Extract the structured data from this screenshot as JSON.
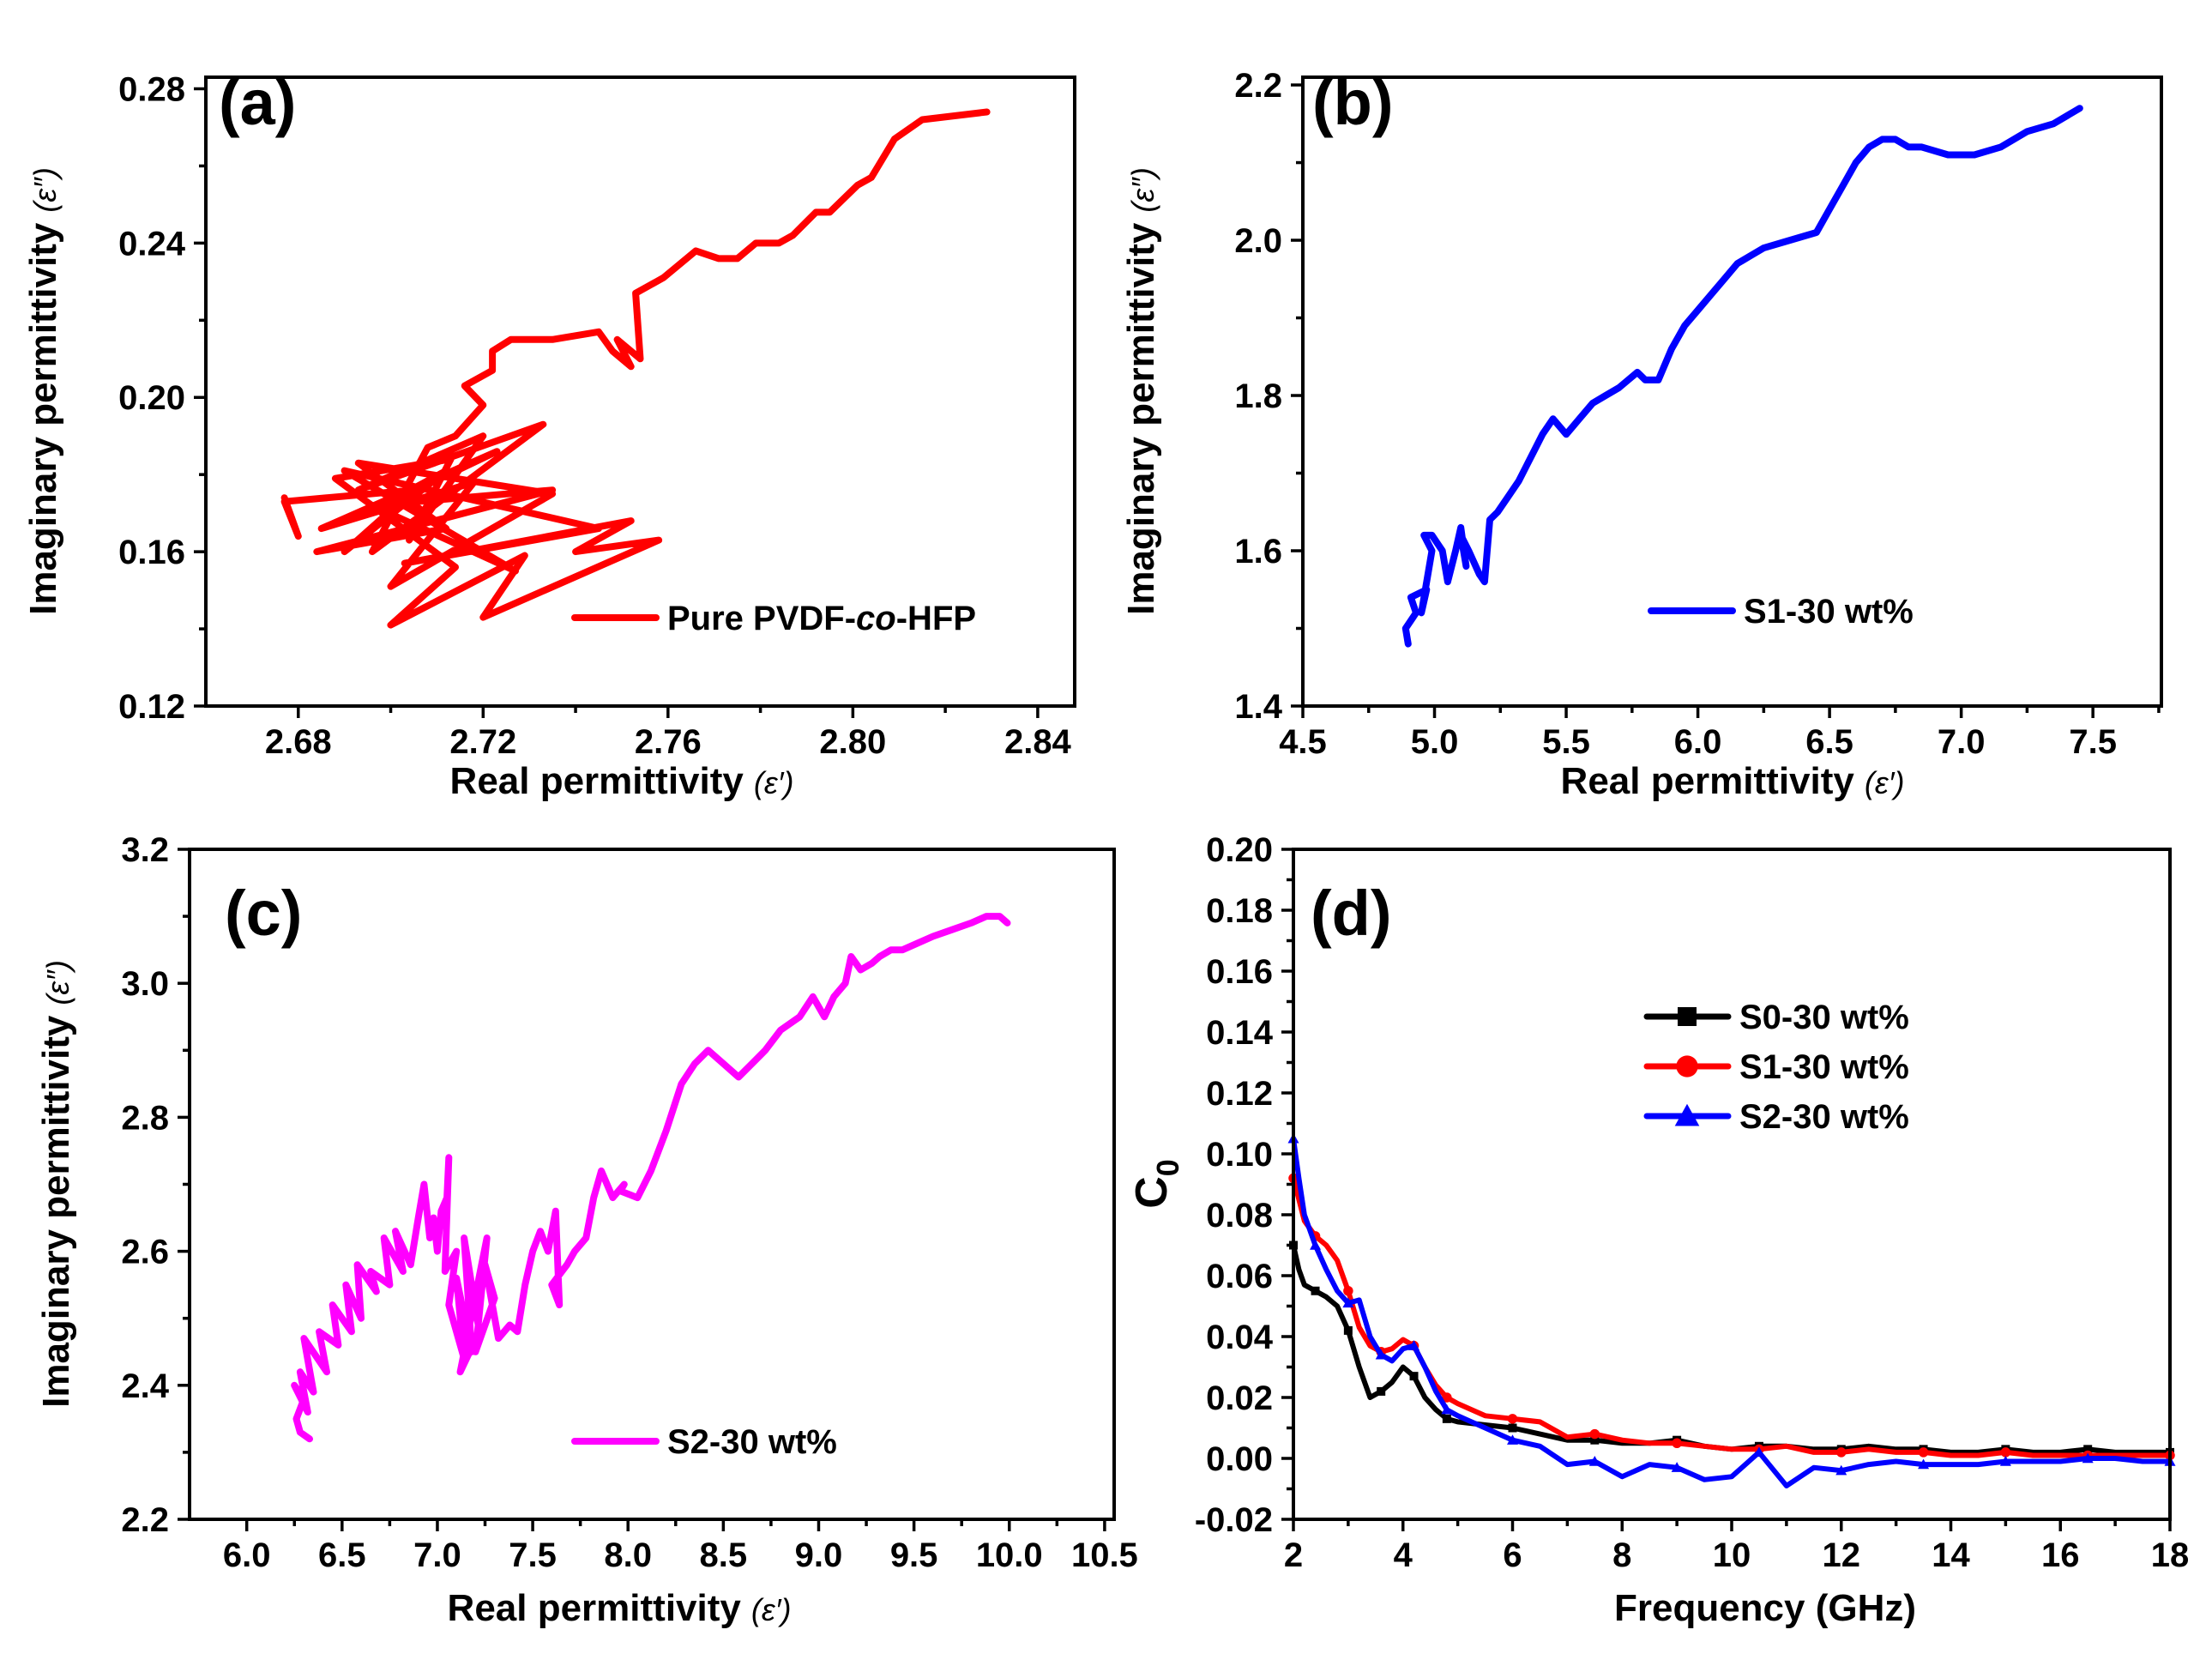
{
  "figure": {
    "panels": [
      "(a)",
      "(b)",
      "(c)",
      "(d)"
    ]
  },
  "chart_data": [
    {
      "id": "a",
      "type": "line",
      "panel_label": "(a)",
      "xlabel": "Real permittivity",
      "xsymbol": "(ε′)",
      "ylabel": "Imaginary permittivity",
      "ysymbol": "(ε″)",
      "xlim": [
        2.66,
        2.848
      ],
      "ylim": [
        0.12,
        0.283
      ],
      "x_ticks": [
        2.68,
        2.72,
        2.76,
        2.8,
        2.84
      ],
      "x_tick_labels": [
        "2.68",
        "2.72",
        "2.76",
        "2.80",
        "2.84"
      ],
      "y_ticks": [
        0.12,
        0.16,
        0.2,
        0.24,
        0.28
      ],
      "y_tick_labels": [
        "0.12",
        "0.16",
        "0.20",
        "0.24",
        "0.28"
      ],
      "legend_position": "bottom-right",
      "series": [
        {
          "name": "Pure PVDF-co-HFP",
          "name_prefix": "Pure PVDF-",
          "name_italic": "co",
          "name_suffix": "-HFP",
          "color": "#ff0000",
          "marker": "none",
          "x": [
            2.677,
            2.68,
            2.677,
            2.705,
            2.69,
            2.712,
            2.695,
            2.723,
            2.685,
            2.718,
            2.7,
            2.735,
            2.693,
            2.712,
            2.684,
            2.735,
            2.696,
            2.727,
            2.69,
            2.745,
            2.703,
            2.752,
            2.74,
            2.758,
            2.72,
            2.729,
            2.7,
            2.714,
            2.688,
            2.713,
            2.704,
            2.72,
            2.693,
            2.733,
            2.696,
            2.708,
            2.714,
            2.72,
            2.716,
            2.722,
            2.722,
            2.726,
            2.735,
            2.745,
            2.748,
            2.752,
            2.749,
            2.754,
            2.753,
            2.759,
            2.766,
            2.771,
            2.775,
            2.779,
            2.784,
            2.787,
            2.792,
            2.795,
            2.801,
            2.804,
            2.809,
            2.815,
            2.829
          ],
          "y": [
            0.174,
            0.164,
            0.173,
            0.176,
            0.16,
            0.181,
            0.17,
            0.186,
            0.166,
            0.178,
            0.151,
            0.175,
            0.183,
            0.166,
            0.16,
            0.176,
            0.172,
            0.155,
            0.181,
            0.166,
            0.157,
            0.168,
            0.16,
            0.163,
            0.143,
            0.159,
            0.141,
            0.156,
            0.179,
            0.184,
            0.163,
            0.19,
            0.176,
            0.193,
            0.16,
            0.187,
            0.19,
            0.198,
            0.203,
            0.207,
            0.212,
            0.215,
            0.215,
            0.217,
            0.212,
            0.208,
            0.215,
            0.21,
            0.227,
            0.231,
            0.238,
            0.236,
            0.236,
            0.24,
            0.24,
            0.242,
            0.248,
            0.248,
            0.255,
            0.257,
            0.267,
            0.272,
            0.274
          ]
        }
      ]
    },
    {
      "id": "b",
      "type": "line",
      "panel_label": "(b)",
      "xlabel": "Real permittivity",
      "xsymbol": "(ε′)",
      "ylabel": "Imaginary permittivity",
      "ysymbol": "(ε″)",
      "xlim": [
        4.5,
        7.76
      ],
      "ylim": [
        1.4,
        2.21
      ],
      "x_ticks": [
        4.5,
        5.0,
        5.5,
        6.0,
        6.5,
        7.0,
        7.5
      ],
      "x_tick_labels": [
        "4.5",
        "5.0",
        "5.5",
        "6.0",
        "6.5",
        "7.0",
        "7.5"
      ],
      "y_ticks": [
        1.4,
        1.6,
        1.8,
        2.0,
        2.2
      ],
      "y_tick_labels": [
        "1.4",
        "1.6",
        "1.8",
        "2.0",
        "2.2"
      ],
      "legend_position": "bottom-right",
      "series": [
        {
          "name": "S1-30 wt%",
          "color": "#0000ff",
          "marker": "none",
          "x": [
            4.9,
            4.89,
            4.93,
            4.91,
            4.97,
            4.95,
            4.99,
            4.96,
            4.99,
            5.03,
            5.05,
            5.08,
            5.1,
            5.12,
            5.1,
            5.13,
            5.17,
            5.19,
            5.21,
            5.24,
            5.28,
            5.32,
            5.35,
            5.38,
            5.41,
            5.45,
            5.5,
            5.55,
            5.6,
            5.65,
            5.7,
            5.77,
            5.8,
            5.85,
            5.9,
            5.95,
            6.0,
            6.05,
            6.1,
            6.15,
            6.2,
            6.25,
            6.35,
            6.45,
            6.5,
            6.55,
            6.6,
            6.65,
            6.7,
            6.75,
            6.8,
            6.85,
            6.95,
            7.05,
            7.15,
            7.25,
            7.35,
            7.45
          ],
          "y": [
            1.48,
            1.5,
            1.52,
            1.54,
            1.55,
            1.52,
            1.6,
            1.62,
            1.62,
            1.6,
            1.56,
            1.6,
            1.63,
            1.58,
            1.62,
            1.6,
            1.57,
            1.56,
            1.64,
            1.65,
            1.67,
            1.69,
            1.71,
            1.73,
            1.75,
            1.77,
            1.75,
            1.77,
            1.79,
            1.8,
            1.81,
            1.83,
            1.82,
            1.82,
            1.86,
            1.89,
            1.91,
            1.93,
            1.95,
            1.97,
            1.98,
            1.99,
            2.0,
            2.01,
            2.04,
            2.07,
            2.1,
            2.12,
            2.13,
            2.13,
            2.12,
            2.12,
            2.11,
            2.11,
            2.12,
            2.14,
            2.15,
            2.17
          ]
        }
      ]
    },
    {
      "id": "c",
      "type": "line",
      "panel_label": "(c)",
      "xlabel": "Real permittivity",
      "xsymbol": "(ε′)",
      "ylabel": "Imaginary permittivity",
      "ysymbol": "(ε″)",
      "xlim": [
        5.7,
        10.55
      ],
      "ylim": [
        2.2,
        3.2
      ],
      "x_ticks": [
        6.0,
        6.5,
        7.0,
        7.5,
        8.0,
        8.5,
        9.0,
        9.5,
        10.0,
        10.5
      ],
      "x_tick_labels": [
        "6.0",
        "6.5",
        "7.0",
        "7.5",
        "8.0",
        "8.5",
        "9.0",
        "9.5",
        "10.0",
        "10.5"
      ],
      "y_ticks": [
        2.2,
        2.4,
        2.6,
        2.8,
        3.0,
        3.2
      ],
      "y_tick_labels": [
        "2.2",
        "2.4",
        "2.6",
        "2.8",
        "3.0",
        "3.2"
      ],
      "legend_position": "bottom-right",
      "series": [
        {
          "name": "S2-30 wt%",
          "color": "#ff00ff",
          "marker": "none",
          "x": [
            6.33,
            6.28,
            6.26,
            6.3,
            6.25,
            6.32,
            6.28,
            6.35,
            6.3,
            6.42,
            6.38,
            6.48,
            6.45,
            6.55,
            6.52,
            6.6,
            6.58,
            6.68,
            6.65,
            6.75,
            6.72,
            6.82,
            6.78,
            6.86,
            6.9,
            6.93,
            6.96,
            6.98,
            7.0,
            7.02,
            7.05,
            7.06,
            7.04,
            7.1,
            7.06,
            7.14,
            7.1,
            7.18,
            7.14,
            7.22,
            7.12,
            7.26,
            7.2,
            7.3,
            7.25,
            7.32,
            7.38,
            7.42,
            7.46,
            7.5,
            7.54,
            7.58,
            7.62,
            7.64,
            7.6,
            7.68,
            7.72,
            7.78,
            7.82,
            7.86,
            7.92,
            7.98,
            7.96,
            8.05,
            8.12,
            8.2,
            8.28,
            8.35,
            8.42,
            8.5,
            8.58,
            8.65,
            8.72,
            8.8,
            8.9,
            8.97,
            9.03,
            9.08,
            9.14,
            9.17,
            9.22,
            9.28,
            9.32,
            9.38,
            9.44,
            9.52,
            9.6,
            9.7,
            9.8,
            9.88,
            9.95,
            9.99
          ],
          "y": [
            2.32,
            2.33,
            2.35,
            2.38,
            2.4,
            2.36,
            2.42,
            2.39,
            2.47,
            2.42,
            2.48,
            2.46,
            2.52,
            2.48,
            2.55,
            2.5,
            2.58,
            2.54,
            2.57,
            2.55,
            2.62,
            2.57,
            2.63,
            2.58,
            2.65,
            2.7,
            2.62,
            2.65,
            2.6,
            2.66,
            2.68,
            2.74,
            2.57,
            2.6,
            2.52,
            2.44,
            2.56,
            2.45,
            2.62,
            2.48,
            2.42,
            2.62,
            2.45,
            2.53,
            2.58,
            2.47,
            2.49,
            2.48,
            2.55,
            2.6,
            2.63,
            2.6,
            2.66,
            2.52,
            2.55,
            2.58,
            2.6,
            2.62,
            2.68,
            2.72,
            2.68,
            2.7,
            2.69,
            2.68,
            2.72,
            2.78,
            2.85,
            2.88,
            2.9,
            2.88,
            2.86,
            2.88,
            2.9,
            2.93,
            2.95,
            2.98,
            2.95,
            2.98,
            3.0,
            3.04,
            3.02,
            3.03,
            3.04,
            3.05,
            3.05,
            3.06,
            3.07,
            3.08,
            3.09,
            3.1,
            3.1,
            3.09
          ]
        }
      ]
    },
    {
      "id": "d",
      "type": "line",
      "panel_label": "(d)",
      "xlabel": "Frequency (GHz)",
      "ylabel": "C",
      "ylabel_sub": "0",
      "xlim": [
        2,
        18
      ],
      "ylim": [
        -0.02,
        0.2
      ],
      "x_ticks": [
        2,
        4,
        6,
        8,
        10,
        12,
        14,
        16,
        18
      ],
      "x_tick_labels": [
        "2",
        "4",
        "6",
        "8",
        "10",
        "12",
        "14",
        "16",
        "18"
      ],
      "y_ticks": [
        -0.02,
        0.0,
        0.02,
        0.04,
        0.06,
        0.08,
        0.1,
        0.12,
        0.14,
        0.16,
        0.18,
        0.2
      ],
      "y_tick_labels": [
        "-0.02",
        "0.00",
        "0.02",
        "0.04",
        "0.06",
        "0.08",
        "0.10",
        "0.12",
        "0.14",
        "0.16",
        "0.18",
        "0.20"
      ],
      "legend_position": "top-right",
      "series": [
        {
          "name": "S0-30 wt%",
          "color": "#000000",
          "marker": "square",
          "x": [
            2.0,
            2.1,
            2.2,
            2.4,
            2.6,
            2.8,
            3.0,
            3.2,
            3.4,
            3.6,
            3.8,
            4.0,
            4.2,
            4.4,
            4.6,
            4.8,
            5.0,
            5.5,
            6.0,
            6.5,
            7.0,
            7.5,
            8.0,
            8.5,
            9.0,
            9.5,
            10.0,
            10.5,
            11.0,
            11.5,
            12.0,
            12.5,
            13.0,
            13.5,
            14.0,
            14.5,
            15.0,
            15.5,
            16.0,
            16.5,
            17.0,
            17.5,
            18.0
          ],
          "y": [
            0.07,
            0.062,
            0.057,
            0.055,
            0.053,
            0.05,
            0.042,
            0.03,
            0.02,
            0.022,
            0.025,
            0.03,
            0.027,
            0.02,
            0.016,
            0.013,
            0.012,
            0.011,
            0.01,
            0.008,
            0.006,
            0.006,
            0.005,
            0.005,
            0.006,
            0.004,
            0.003,
            0.004,
            0.004,
            0.003,
            0.003,
            0.004,
            0.003,
            0.003,
            0.002,
            0.002,
            0.003,
            0.002,
            0.002,
            0.003,
            0.002,
            0.002,
            0.002
          ]
        },
        {
          "name": "S1-30 wt%",
          "color": "#ff0000",
          "marker": "circle",
          "x": [
            2.0,
            2.1,
            2.2,
            2.4,
            2.6,
            2.8,
            3.0,
            3.2,
            3.4,
            3.6,
            3.8,
            4.0,
            4.2,
            4.4,
            4.6,
            4.8,
            5.0,
            5.5,
            6.0,
            6.5,
            7.0,
            7.5,
            8.0,
            8.5,
            9.0,
            9.5,
            10.0,
            10.5,
            11.0,
            11.5,
            12.0,
            12.5,
            13.0,
            13.5,
            14.0,
            14.5,
            15.0,
            15.5,
            16.0,
            16.5,
            17.0,
            17.5,
            18.0
          ],
          "y": [
            0.092,
            0.085,
            0.078,
            0.073,
            0.07,
            0.065,
            0.055,
            0.043,
            0.037,
            0.035,
            0.036,
            0.039,
            0.037,
            0.03,
            0.024,
            0.02,
            0.018,
            0.014,
            0.013,
            0.012,
            0.007,
            0.008,
            0.006,
            0.005,
            0.005,
            0.004,
            0.003,
            0.003,
            0.004,
            0.002,
            0.002,
            0.003,
            0.002,
            0.002,
            0.001,
            0.001,
            0.002,
            0.001,
            0.001,
            0.001,
            0.001,
            0.001,
            0.001
          ]
        },
        {
          "name": "S2-30 wt%",
          "color": "#0000ff",
          "marker": "triangle",
          "x": [
            2.0,
            2.1,
            2.2,
            2.4,
            2.6,
            2.8,
            3.0,
            3.2,
            3.4,
            3.6,
            3.8,
            4.0,
            4.2,
            4.4,
            4.6,
            4.8,
            5.0,
            5.5,
            6.0,
            6.5,
            7.0,
            7.5,
            8.0,
            8.5,
            9.0,
            9.5,
            10.0,
            10.5,
            11.0,
            11.5,
            12.0,
            12.5,
            13.0,
            13.5,
            14.0,
            14.5,
            15.0,
            15.5,
            16.0,
            16.5,
            17.0,
            17.5,
            18.0
          ],
          "y": [
            0.105,
            0.092,
            0.08,
            0.07,
            0.062,
            0.055,
            0.051,
            0.052,
            0.04,
            0.034,
            0.032,
            0.036,
            0.037,
            0.03,
            0.022,
            0.016,
            0.014,
            0.01,
            0.006,
            0.004,
            -0.002,
            -0.001,
            -0.006,
            -0.002,
            -0.003,
            -0.007,
            -0.006,
            0.002,
            -0.009,
            -0.003,
            -0.004,
            -0.002,
            -0.001,
            -0.002,
            -0.002,
            -0.002,
            -0.001,
            -0.001,
            -0.001,
            0.0,
            0.0,
            -0.001,
            -0.001
          ]
        }
      ]
    }
  ]
}
